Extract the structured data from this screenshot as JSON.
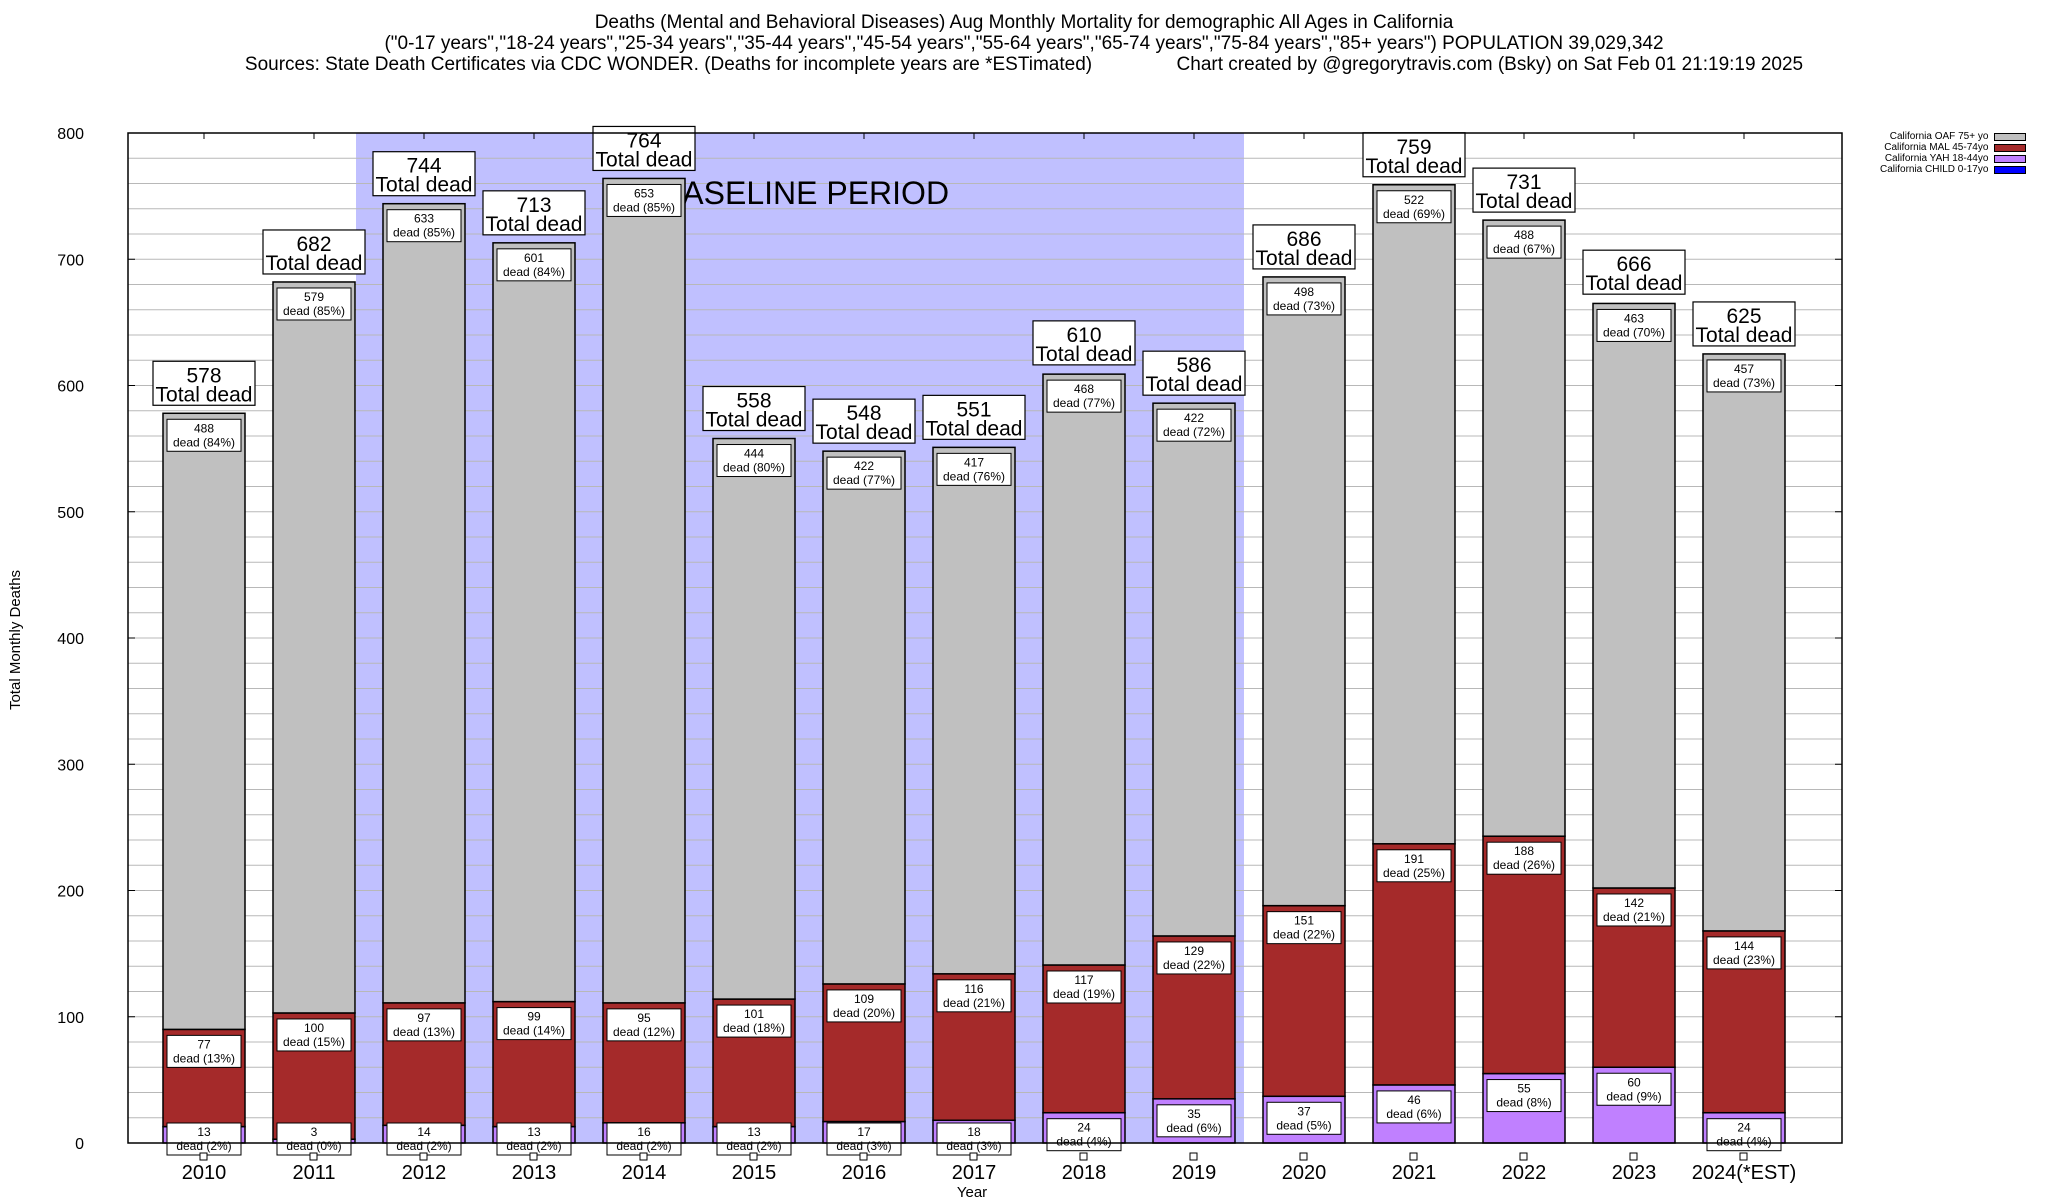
{
  "titles": {
    "line1": "Deaths (Mental and Behavioral Diseases) Aug Monthly Mortality for demographic All Ages in California",
    "line2": "(\"0-17 years\",\"18-24 years\",\"25-34 years\",\"35-44 years\",\"45-54 years\",\"55-64 years\",\"65-74 years\",\"75-84 years\",\"85+ years\") POPULATION 39,029,342",
    "line3": "Sources: State Death Certificates via CDC WONDER. (Deaths for incomplete years are *ESTimated)                Chart created by @gregorytravis.com (Bsky) on Sat Feb 01 21:19:19 2025"
  },
  "chart_data": {
    "type": "bar",
    "stacked": true,
    "title": "Deaths (Mental and Behavioral Diseases) Aug Monthly Mortality for demographic All Ages in California",
    "xlabel": "Year",
    "ylabel": "Total Monthly Deaths",
    "ylim": [
      0,
      800
    ],
    "yticks": [
      0,
      100,
      200,
      300,
      400,
      500,
      600,
      700,
      800
    ],
    "grid": true,
    "legend_position": "top-right",
    "categories": [
      "2010",
      "2011",
      "2012",
      "2013",
      "2014",
      "2015",
      "2016",
      "2017",
      "2018",
      "2019",
      "2020",
      "2021",
      "2022",
      "2023",
      "2024(*EST)"
    ],
    "baseline_annotation": {
      "label": "BASELINE PERIOD",
      "from": "2012",
      "to": "2019",
      "color": "#c0c0ff"
    },
    "totals": [
      578,
      682,
      744,
      713,
      764,
      558,
      548,
      551,
      610,
      586,
      686,
      759,
      731,
      666,
      625
    ],
    "total_label_suffix": "Total dead",
    "segment_label_prefix": "dead",
    "series": [
      {
        "name": "California CHILD 0-17yo",
        "color": "#0000ff",
        "values": [
          0,
          0,
          0,
          0,
          0,
          0,
          0,
          0,
          0,
          0,
          0,
          0,
          0,
          0,
          0
        ],
        "pct": []
      },
      {
        "name": "California YAH 18-44yo",
        "color": "#c080ff",
        "values": [
          13,
          3,
          14,
          13,
          16,
          13,
          17,
          18,
          24,
          35,
          37,
          46,
          55,
          60,
          24
        ],
        "pct": [
          "2%",
          "0%",
          "2%",
          "2%",
          "2%",
          "2%",
          "3%",
          "3%",
          "4%",
          "6%",
          "5%",
          "6%",
          "8%",
          "9%",
          "4%"
        ]
      },
      {
        "name": "California MAL 45-74yo",
        "color": "#a52a2a",
        "values": [
          77,
          100,
          97,
          99,
          95,
          101,
          109,
          116,
          117,
          129,
          151,
          191,
          188,
          142,
          144
        ],
        "pct": [
          "13%",
          "15%",
          "13%",
          "14%",
          "12%",
          "18%",
          "20%",
          "21%",
          "19%",
          "22%",
          "22%",
          "25%",
          "26%",
          "21%",
          "23%"
        ]
      },
      {
        "name": "California OAF 75+ yo",
        "color": "#c0c0c0",
        "values": [
          488,
          579,
          633,
          601,
          653,
          444,
          422,
          417,
          468,
          422,
          498,
          522,
          488,
          463,
          457
        ],
        "pct": [
          "84%",
          "85%",
          "85%",
          "84%",
          "85%",
          "80%",
          "77%",
          "76%",
          "77%",
          "72%",
          "73%",
          "69%",
          "67%",
          "70%",
          "73%"
        ]
      }
    ]
  }
}
